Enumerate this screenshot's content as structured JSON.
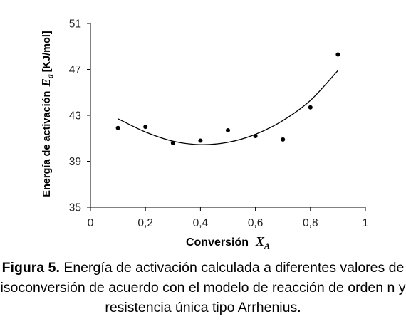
{
  "chart_data": {
    "type": "scatter",
    "xlabel": "Conversión",
    "xlabel_symbol": "X",
    "xlabel_subscript": "A",
    "ylabel_prefix": "Energía de activación",
    "ylabel_symbol": "E",
    "ylabel_subscript": "a",
    "ylabel_unit": "[KJ/mol]",
    "xlim": [
      0,
      1
    ],
    "ylim": [
      35,
      51
    ],
    "x_ticks": [
      "0",
      "0,2",
      "0,4",
      "0,6",
      "0,8",
      "1"
    ],
    "y_ticks": [
      "35",
      "39",
      "43",
      "47",
      "51"
    ],
    "grid": false,
    "legend": "none",
    "series": [
      {
        "points": [
          {
            "x": 0.1,
            "y": 41.9
          },
          {
            "x": 0.2,
            "y": 42.0
          },
          {
            "x": 0.3,
            "y": 40.6
          },
          {
            "x": 0.4,
            "y": 40.8
          },
          {
            "x": 0.5,
            "y": 41.7
          },
          {
            "x": 0.6,
            "y": 41.2
          },
          {
            "x": 0.7,
            "y": 40.9
          },
          {
            "x": 0.8,
            "y": 43.7
          },
          {
            "x": 0.9,
            "y": 48.3
          }
        ]
      }
    ],
    "trendline": {
      "type": "polynomial",
      "x_range": [
        0.1,
        0.9
      ],
      "points": [
        {
          "x": 0.1,
          "y": 42.7
        },
        {
          "x": 0.2,
          "y": 41.55
        },
        {
          "x": 0.3,
          "y": 40.75
        },
        {
          "x": 0.4,
          "y": 40.45
        },
        {
          "x": 0.5,
          "y": 40.65
        },
        {
          "x": 0.6,
          "y": 41.35
        },
        {
          "x": 0.7,
          "y": 42.55
        },
        {
          "x": 0.8,
          "y": 44.3
        },
        {
          "x": 0.9,
          "y": 46.9
        }
      ]
    },
    "colors": {
      "marker": "#000000",
      "line": "#000000",
      "axis": "#000000"
    }
  },
  "caption": {
    "label": "Figura 5.",
    "text": " Energía de activación calculada a diferentes valores de isoconversión de acuerdo con el modelo de reacción de orden n y resistencia única tipo Arrhenius."
  }
}
